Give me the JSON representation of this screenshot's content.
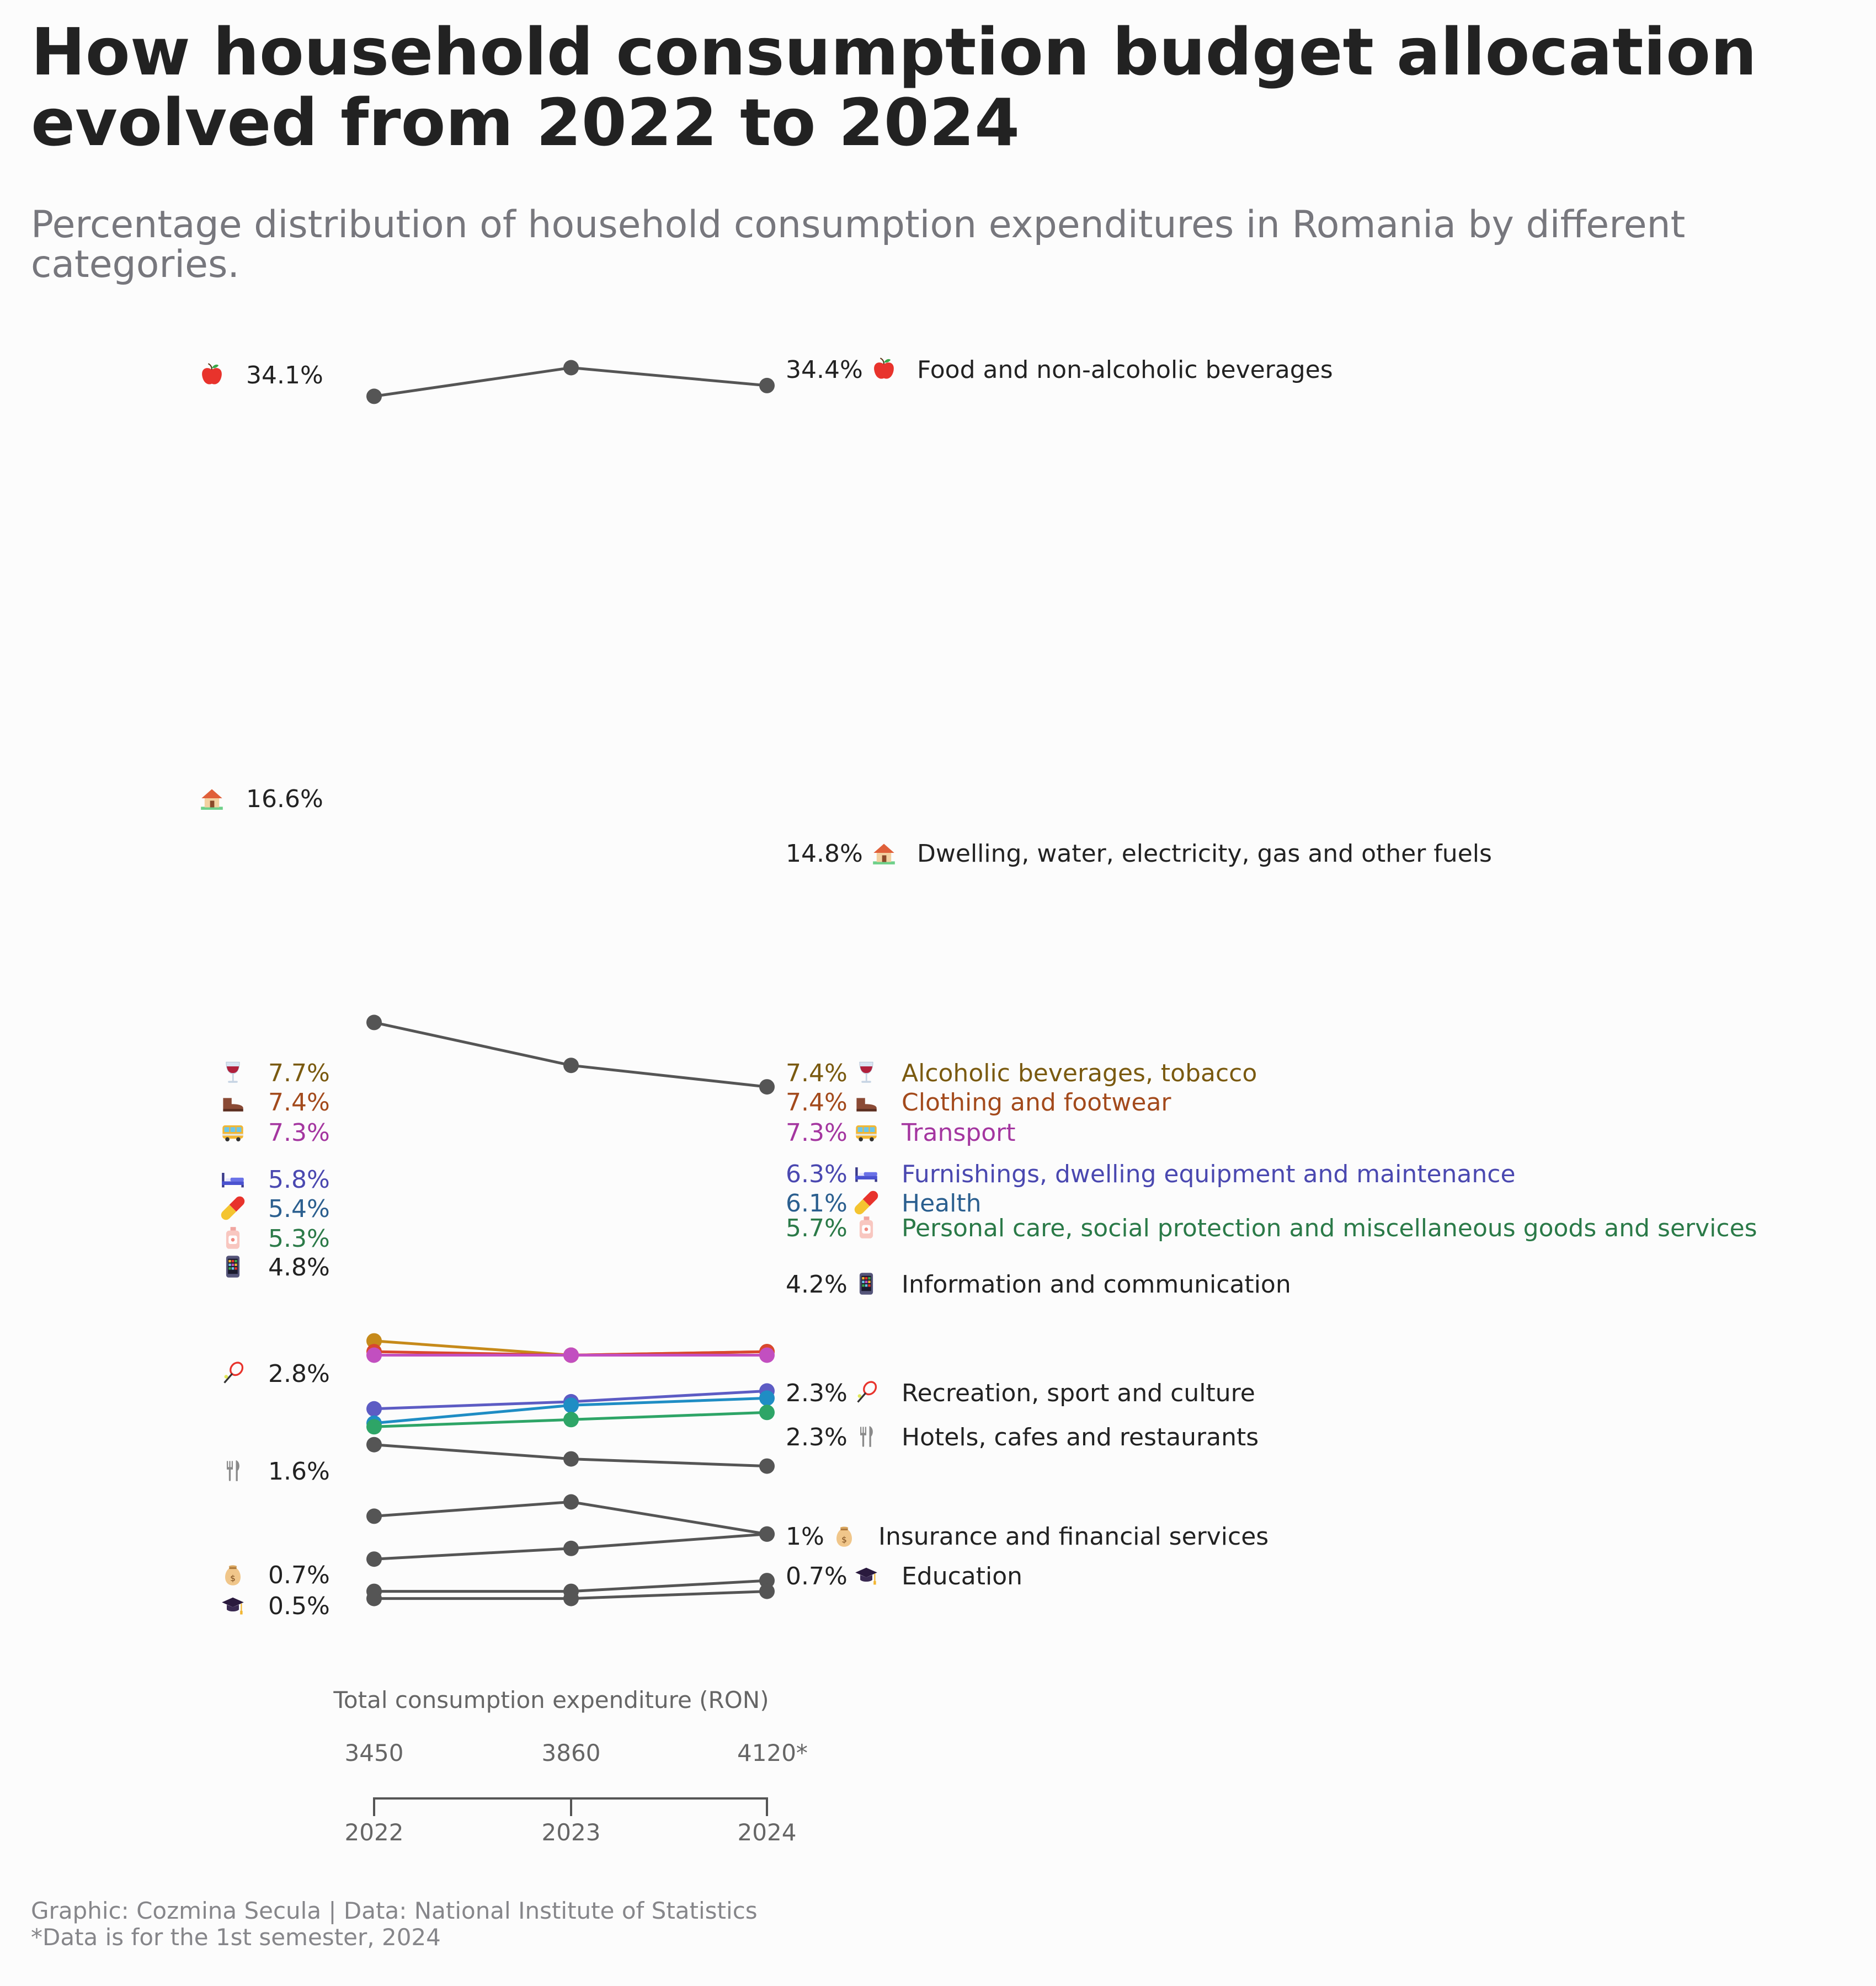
{
  "title": "How household consumption budget allocation evolved from 2022 to 2024",
  "subtitle": "Percentage distribution of household consumption expenditures in Romania by different categories.",
  "footer": {
    "source": "Graphic: Cozmina Secula | Data: National Institute of Statistics",
    "note": "*Data is for the 1st semester, 2024"
  },
  "chart_data": {
    "type": "line",
    "x": [
      "2022",
      "2023",
      "2024"
    ],
    "ylim": [
      0,
      35
    ],
    "grid": false,
    "legend": "direct labels at left and right ends",
    "total_expenditure_label": "Total consumption expenditure (RON)",
    "total_expenditure": [
      "3450",
      "3860",
      "4120*"
    ],
    "series": [
      {
        "name": "Food and non-alcoholic beverages",
        "icon": "apple-icon",
        "color": "#555555",
        "values": [
          34.1,
          34.9,
          34.4
        ],
        "start_label": "34.1%",
        "end_label": "34.4%"
      },
      {
        "name": "Dwelling, water, electricity, gas and other fuels",
        "icon": "house-icon",
        "color": "#555555",
        "values": [
          16.6,
          15.4,
          14.8
        ],
        "start_label": "16.6%",
        "end_label": "14.8%"
      },
      {
        "name": "Alcoholic beverages, tobacco",
        "icon": "wine-glass-icon",
        "color": "#c68a1a",
        "text_color": "#7a5a10",
        "values": [
          7.7,
          7.3,
          7.4
        ],
        "start_label": "7.7%",
        "end_label": "7.4%"
      },
      {
        "name": "Clothing and footwear",
        "icon": "boot-icon",
        "color": "#d9472e",
        "text_color": "#a34a1c",
        "values": [
          7.4,
          7.3,
          7.4
        ],
        "start_label": "7.4%",
        "end_label": "7.4%"
      },
      {
        "name": "Transport",
        "icon": "bus-icon",
        "color": "#c24fc0",
        "text_color": "#a436a0",
        "values": [
          7.3,
          7.3,
          7.3
        ],
        "start_label": "7.3%",
        "end_label": "7.3%"
      },
      {
        "name": "Furnishings, dwelling equipment and maintenance",
        "icon": "bed-icon",
        "color": "#5d5cc4",
        "text_color": "#4a48b0",
        "values": [
          5.8,
          6.0,
          6.3
        ],
        "start_label": "5.8%",
        "end_label": "6.3%"
      },
      {
        "name": "Health",
        "icon": "pill-icon",
        "color": "#1f8dc4",
        "text_color": "#2b5f8f",
        "values": [
          5.4,
          5.9,
          6.1
        ],
        "start_label": "5.4%",
        "end_label": "6.1%"
      },
      {
        "name": "Personal care, social protection and miscellaneous goods and services",
        "icon": "lotion-bottle-icon",
        "color": "#2ea567",
        "text_color": "#2b7a48",
        "values": [
          5.3,
          5.5,
          5.7
        ],
        "start_label": "5.3%",
        "end_label": "5.7%"
      },
      {
        "name": "Information and communication",
        "icon": "mobile-phone-icon",
        "color": "#555555",
        "values": [
          4.8,
          4.4,
          4.2
        ],
        "start_label": "4.8%",
        "end_label": "4.2%"
      },
      {
        "name": "Recreation, sport and culture",
        "icon": "tennis-racket-icon",
        "color": "#555555",
        "values": [
          2.8,
          3.2,
          2.3
        ],
        "start_label": "2.8%",
        "end_label": "2.3%"
      },
      {
        "name": "Hotels, cafes and restaurants",
        "icon": "fork-knife-icon",
        "color": "#555555",
        "values": [
          1.6,
          1.9,
          2.3
        ],
        "start_label": "1.6%",
        "end_label": "2.3%"
      },
      {
        "name": "Insurance and financial services",
        "icon": "money-bag-icon",
        "color": "#555555",
        "values": [
          0.7,
          0.7,
          1.0
        ],
        "start_label": "0.7%",
        "end_label": "1%"
      },
      {
        "name": "Education",
        "icon": "graduation-cap-icon",
        "color": "#555555",
        "values": [
          0.5,
          0.5,
          0.7
        ],
        "start_label": "0.5%",
        "end_label": "0.7%"
      }
    ]
  }
}
